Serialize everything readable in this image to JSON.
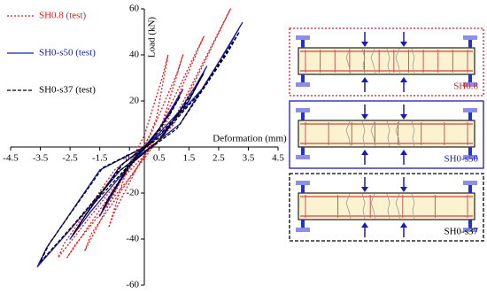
{
  "chart_data": {
    "type": "line",
    "x_label": "Deformation (mm)",
    "y_label": "Load (kN)",
    "xlim": [
      -4.5,
      4.5
    ],
    "ylim": [
      -60,
      60
    ],
    "xticks": [
      -4.5,
      -3.5,
      -2.5,
      -1.5,
      -0.5,
      0.5,
      1.5,
      2.5,
      3.5,
      4.5
    ],
    "yticks": [
      -60,
      -40,
      -20,
      20,
      40,
      60
    ],
    "legend": "upper left",
    "series": [
      {
        "name": "SH0.8 (test)",
        "color": "#e8191f",
        "linestyle": "dotted",
        "x": [
          0,
          0.4,
          0.8,
          0.6,
          0,
          -0.6,
          -1.2,
          -1.0,
          -0.2,
          0.6,
          1.3,
          1.1,
          0.2,
          -0.8,
          -2.0,
          -1.8,
          -0.4,
          0.8,
          2.0,
          1.7,
          0.5,
          -1.0,
          -2.6,
          -2.3,
          -0.6,
          1.0,
          2.9,
          2.6,
          1.0,
          -1.2,
          -2.9,
          -2.7,
          -1.0,
          0
        ],
        "values": [
          0,
          12,
          40,
          30,
          5,
          -10,
          -35,
          -28,
          -8,
          10,
          40,
          32,
          5,
          -15,
          -45,
          -38,
          -12,
          12,
          48,
          40,
          8,
          -18,
          -48,
          -42,
          -15,
          12,
          60,
          52,
          10,
          -20,
          -48,
          -42,
          -10,
          0
        ]
      },
      {
        "name": "SH0-s50 (test)",
        "color": "#1a1ab8",
        "linestyle": "solid",
        "x": [
          0,
          0.5,
          1.3,
          1.0,
          0.2,
          -0.5,
          -1.5,
          -1.2,
          -0.3,
          0.5,
          1.5,
          2.1,
          1.7,
          0.6,
          -0.5,
          -1.8,
          -2.5,
          -2.1,
          -0.8,
          0.6,
          2.0,
          3.3,
          2.9,
          1.2,
          -0.8,
          -2.5,
          -3.6,
          -3.3,
          -1.5,
          0
        ],
        "values": [
          0,
          8,
          25,
          18,
          2,
          -8,
          -30,
          -22,
          -4,
          6,
          20,
          35,
          26,
          4,
          -8,
          -28,
          -40,
          -32,
          -8,
          6,
          26,
          54,
          45,
          10,
          -10,
          -36,
          -52,
          -44,
          -10,
          0
        ]
      },
      {
        "name": "SH0-s37 (test)",
        "color": "#000000",
        "linestyle": "dashed",
        "x": [
          0,
          0.5,
          1.2,
          0.9,
          0.1,
          -0.5,
          -1.4,
          -1.1,
          -0.2,
          0.5,
          1.4,
          2.0,
          1.6,
          0.5,
          -0.6,
          -1.8,
          -2.4,
          -2.0,
          -0.7,
          0.6,
          1.9,
          3.2,
          2.8,
          1.1,
          -0.9,
          -2.4,
          -3.5,
          -3.2,
          -1.4,
          0
        ],
        "values": [
          0,
          7,
          22,
          15,
          1,
          -7,
          -27,
          -20,
          -3,
          5,
          18,
          32,
          23,
          3,
          -9,
          -26,
          -38,
          -30,
          -7,
          5,
          24,
          50,
          41,
          8,
          -11,
          -34,
          -50,
          -42,
          -9,
          0
        ]
      }
    ]
  },
  "specimens": [
    "SH0.8",
    "SH0-s50",
    "SH0-s37"
  ]
}
